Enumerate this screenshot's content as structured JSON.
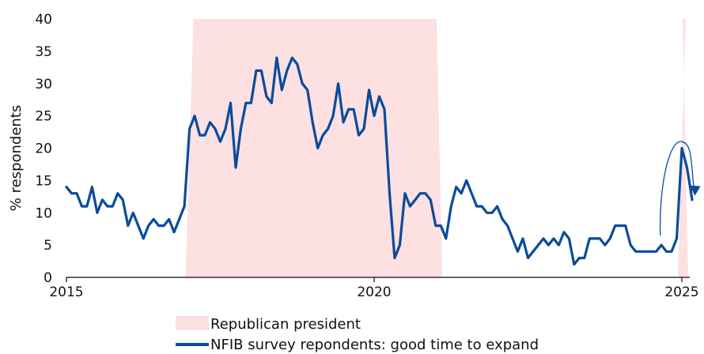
{
  "chart_data": {
    "type": "line",
    "title": "",
    "ylabel": "% respondents",
    "xlabel": "",
    "ylim": [
      0,
      40
    ],
    "xlim": [
      2015,
      2025.2
    ],
    "y_ticks": [
      0,
      5,
      10,
      15,
      20,
      25,
      30,
      35,
      40
    ],
    "y_tick_labels": [
      "0",
      "5",
      "10",
      "15",
      "20",
      "25",
      "30",
      "35",
      "40"
    ],
    "x_ticks": [
      2015,
      2020,
      2025
    ],
    "x_tick_labels": [
      "2015",
      "2020",
      "2025"
    ],
    "grid": false,
    "legend_position": "bottom",
    "shaded_periods": {
      "name": "Republican president",
      "color": "#fde0e1",
      "ranges": [
        [
          2017.0,
          2021.08
        ],
        [
          2025.0,
          2025.12
        ]
      ]
    },
    "series": [
      {
        "name": "NFIB survey repondents: good time to expand",
        "color": "#0a4b9c",
        "x": [
          2015.0,
          2015.083,
          2015.167,
          2015.25,
          2015.333,
          2015.417,
          2015.5,
          2015.583,
          2015.667,
          2015.75,
          2015.833,
          2015.917,
          2016.0,
          2016.083,
          2016.167,
          2016.25,
          2016.333,
          2016.417,
          2016.5,
          2016.583,
          2016.667,
          2016.75,
          2016.833,
          2016.917,
          2017.0,
          2017.083,
          2017.167,
          2017.25,
          2017.333,
          2017.417,
          2017.5,
          2017.583,
          2017.667,
          2017.75,
          2017.833,
          2017.917,
          2018.0,
          2018.083,
          2018.167,
          2018.25,
          2018.333,
          2018.417,
          2018.5,
          2018.583,
          2018.667,
          2018.75,
          2018.833,
          2018.917,
          2019.0,
          2019.083,
          2019.167,
          2019.25,
          2019.333,
          2019.417,
          2019.5,
          2019.583,
          2019.667,
          2019.75,
          2019.833,
          2019.917,
          2020.0,
          2020.083,
          2020.167,
          2020.25,
          2020.333,
          2020.417,
          2020.5,
          2020.583,
          2020.667,
          2020.75,
          2020.833,
          2020.917,
          2021.0,
          2021.083,
          2021.167,
          2021.25,
          2021.333,
          2021.417,
          2021.5,
          2021.583,
          2021.667,
          2021.75,
          2021.833,
          2021.917,
          2022.0,
          2022.083,
          2022.167,
          2022.25,
          2022.333,
          2022.417,
          2022.5,
          2022.583,
          2022.667,
          2022.75,
          2022.833,
          2022.917,
          2023.0,
          2023.083,
          2023.167,
          2023.25,
          2023.333,
          2023.417,
          2023.5,
          2023.583,
          2023.667,
          2023.75,
          2023.833,
          2023.917,
          2024.0,
          2024.083,
          2024.167,
          2024.25,
          2024.333,
          2024.417,
          2024.5,
          2024.583,
          2024.667,
          2024.75,
          2024.833,
          2024.917,
          2025.0,
          2025.083,
          2025.167
        ],
        "values": [
          14,
          13,
          13,
          11,
          11,
          14,
          10,
          12,
          11,
          11,
          13,
          12,
          8,
          10,
          8,
          6,
          8,
          9,
          8,
          8,
          9,
          7,
          9,
          11,
          23,
          25,
          22,
          22,
          24,
          23,
          21,
          23,
          27,
          17,
          23,
          27,
          27,
          32,
          32,
          28,
          27,
          34,
          29,
          32,
          34,
          33,
          30,
          29,
          24,
          20,
          22,
          23,
          25,
          30,
          24,
          26,
          26,
          22,
          23,
          29,
          25,
          28,
          26,
          13,
          3,
          5,
          13,
          11,
          12,
          13,
          13,
          12,
          8,
          8,
          6,
          11,
          14,
          13,
          15,
          13,
          11,
          11,
          10,
          10,
          11,
          9,
          8,
          6,
          4,
          6,
          3,
          4,
          5,
          6,
          5,
          6,
          5,
          7,
          6,
          2,
          3,
          3,
          6,
          6,
          6,
          5,
          6,
          8,
          8,
          8,
          5,
          4,
          4,
          4,
          4,
          4,
          5,
          4,
          4,
          6,
          20,
          17,
          12
        ]
      }
    ],
    "annotations": [
      {
        "type": "curved-arrow",
        "description": "arc from late-2024 low up over the 2025 peak and down",
        "color": "#0a4b9c"
      }
    ]
  }
}
